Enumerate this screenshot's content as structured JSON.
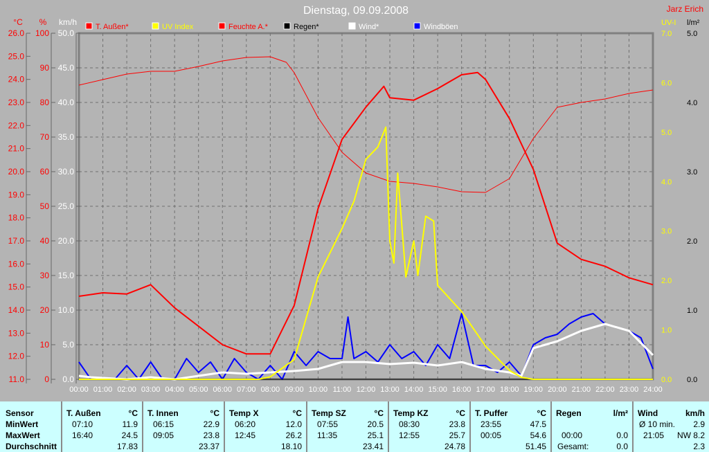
{
  "title": "Dienstag, 09.09.2008",
  "author": "Jarz Erich",
  "colors": {
    "t_aussen": "#ff0000",
    "uv": "#ffff00",
    "feuchte": "#ff0000",
    "regen": "#000000",
    "wind": "#ffffff",
    "windboeen": "#0000ff",
    "background": "#b4b4b4",
    "table": "#ccffff"
  },
  "chart_data": {
    "type": "line",
    "title": "Dienstag, 09.09.2008",
    "grid": true,
    "legend_placement": "top",
    "axes": {
      "left": [
        {
          "unit": "°C",
          "range": [
            11,
            26
          ],
          "ticks": [
            "26.0",
            "25.0",
            "24.0",
            "23.0",
            "22.0",
            "21.0",
            "20.0",
            "19.0",
            "18.0",
            "17.0",
            "16.0",
            "15.0",
            "14.0",
            "13.0",
            "12.0",
            "11.0"
          ]
        },
        {
          "unit": "%",
          "range": [
            0,
            100
          ],
          "ticks": [
            "100",
            "90",
            "80",
            "70",
            "60",
            "50",
            "40",
            "30",
            "20",
            "10",
            "0"
          ]
        },
        {
          "unit": "km/h",
          "range": [
            0,
            50
          ],
          "ticks": [
            "50.0",
            "45.0",
            "40.0",
            "35.0",
            "30.0",
            "25.0",
            "20.0",
            "15.0",
            "10.0",
            "5.0",
            "0.0"
          ]
        }
      ],
      "right": [
        {
          "unit": "UV-I",
          "range": [
            0,
            7
          ],
          "ticks": [
            "7.0",
            "6.0",
            "5.0",
            "4.0",
            "3.0",
            "2.0",
            "1.0",
            "0.0"
          ]
        },
        {
          "unit": "l/m²",
          "range": [
            0,
            5
          ],
          "ticks": [
            "5.0",
            "4.0",
            "3.0",
            "2.0",
            "1.0",
            "0.0"
          ]
        }
      ],
      "x_ticks": [
        "00:00",
        "01:00",
        "02:00",
        "03:00",
        "04:00",
        "05:00",
        "06:00",
        "07:00",
        "08:00",
        "09:00",
        "10:00",
        "11:00",
        "12:00",
        "13:00",
        "14:00",
        "15:00",
        "16:00",
        "17:00",
        "18:00",
        "19:00",
        "20:00",
        "21:00",
        "22:00",
        "23:00",
        "24:00"
      ]
    },
    "series": [
      {
        "name": "T. Außen*",
        "axis": "°C",
        "width": 2,
        "x": [
          0,
          1,
          2,
          3,
          4,
          5,
          6,
          7,
          8,
          9,
          10,
          11,
          12,
          12.75,
          13,
          14,
          15,
          16,
          16.67,
          17,
          18,
          19,
          20,
          21,
          22,
          23,
          24
        ],
        "y": [
          14.6,
          14.75,
          14.7,
          15.1,
          14.1,
          13.3,
          12.5,
          12.1,
          12.1,
          14.2,
          18.4,
          21.4,
          22.8,
          23.7,
          23.2,
          23.1,
          23.6,
          24.2,
          24.3,
          24.0,
          22.3,
          20.1,
          16.9,
          16.2,
          15.9,
          15.4,
          15.1
        ]
      },
      {
        "name": "UV Index",
        "axis": "UV-I",
        "width": 2,
        "x": [
          0,
          7.5,
          8,
          9,
          10,
          11,
          11.5,
          12,
          12.5,
          12.83,
          13,
          13.17,
          13.33,
          13.67,
          14,
          14.17,
          14.5,
          14.83,
          15,
          16,
          17,
          18,
          18.5,
          19,
          24
        ],
        "y": [
          0,
          0,
          0.05,
          0.4,
          2.07,
          3.05,
          3.6,
          4.45,
          4.7,
          5.1,
          2.8,
          2.35,
          4.17,
          2.07,
          2.8,
          2.1,
          3.3,
          3.2,
          1.9,
          1.37,
          0.67,
          0.18,
          0.04,
          0,
          0
        ]
      },
      {
        "name": "Feuchte A.*",
        "axis": "%",
        "width": 1,
        "x": [
          0,
          1,
          2,
          3,
          4,
          5,
          6,
          7,
          8,
          8.67,
          9,
          10,
          11,
          12,
          13,
          14,
          15,
          16,
          17,
          18,
          19,
          20,
          21,
          22,
          23,
          24
        ],
        "y": [
          85,
          86.6,
          88.2,
          89,
          89,
          90.4,
          92,
          93,
          93.2,
          91.6,
          88.6,
          75.6,
          65.6,
          59.6,
          57.2,
          56.6,
          55.6,
          54.2,
          54,
          58,
          69.6,
          78.6,
          80,
          81,
          82.6,
          83.6
        ]
      },
      {
        "name": "Regen*",
        "axis": "l/m²",
        "width": 1,
        "x": [
          0,
          24
        ],
        "y": [
          0,
          0
        ]
      },
      {
        "name": "Wind*",
        "axis": "km/h",
        "width": 3,
        "x": [
          0,
          0.5,
          2,
          3,
          4,
          5,
          6,
          7,
          8,
          9,
          10,
          11,
          12,
          13,
          14,
          15,
          16,
          17,
          18,
          18.5,
          19,
          20,
          21,
          22,
          23,
          24
        ],
        "y": [
          0.5,
          0.3,
          0,
          0.3,
          0,
          0.5,
          1,
          0.8,
          1,
          1.2,
          1.5,
          2.5,
          2.5,
          2.2,
          2.4,
          2,
          2.5,
          1.5,
          1,
          0.5,
          4.5,
          5.5,
          7,
          8,
          7,
          3.5
        ]
      },
      {
        "name": "Windböen",
        "axis": "km/h",
        "width": 2,
        "x": [
          0,
          0.5,
          1,
          1.5,
          2,
          2.5,
          3,
          3.5,
          4,
          4.5,
          5,
          5.5,
          6,
          6.5,
          7,
          7.5,
          8,
          8.5,
          9,
          9.5,
          10,
          10.5,
          11,
          11.25,
          11.5,
          12,
          12.5,
          13,
          13.5,
          14,
          14.5,
          15,
          15.5,
          16,
          16.5,
          17,
          17.5,
          18,
          18.5,
          19,
          19.5,
          20,
          20.5,
          21,
          21.5,
          22,
          22.5,
          23,
          23.5,
          24
        ],
        "y": [
          2.5,
          0,
          0,
          0,
          2,
          0,
          2.5,
          0,
          0,
          3,
          1,
          2.5,
          0,
          3,
          1,
          0,
          2,
          0,
          4,
          2,
          4,
          3,
          3,
          9,
          3,
          4,
          2.5,
          5,
          3,
          4,
          2,
          5,
          3,
          9.5,
          2,
          2,
          1,
          2.5,
          0.5,
          5,
          6,
          6.5,
          8,
          9,
          9.5,
          8,
          7.5,
          7,
          6,
          1.5
        ]
      }
    ]
  },
  "table": {
    "row_labels": [
      "Sensor",
      "MinWert",
      "MaxWert",
      "Durchschnitt"
    ],
    "columns": [
      {
        "name": "T. Außen",
        "unit": "°C",
        "min_time": "07:10",
        "min": "11.9",
        "max_time": "16:40",
        "max": "24.5",
        "avg": "17.83"
      },
      {
        "name": "T. Innen",
        "unit": "°C",
        "min_time": "06:15",
        "min": "22.9",
        "max_time": "09:05",
        "max": "23.8",
        "avg": "23.37"
      },
      {
        "name": "Temp X",
        "unit": "°C",
        "min_time": "06:20",
        "min": "12.0",
        "max_time": "12:45",
        "max": "26.2",
        "avg": "18.10"
      },
      {
        "name": "Temp SZ",
        "unit": "°C",
        "min_time": "07:55",
        "min": "20.5",
        "max_time": "11:35",
        "max": "25.1",
        "avg": "23.41"
      },
      {
        "name": "Temp KZ",
        "unit": "°C",
        "min_time": "08:30",
        "min": "23.8",
        "max_time": "12:55",
        "max": "25.7",
        "avg": "24.78"
      },
      {
        "name": "T. Puffer",
        "unit": "°C",
        "min_time": "23:55",
        "min": "47.5",
        "max_time": "00:05",
        "max": "54.6",
        "avg": "51.45"
      },
      {
        "name": "Regen",
        "unit": "l/m²",
        "min_time": "",
        "min": "",
        "max_time": "00:00",
        "max": "0.0",
        "avg_label": "Gesamt:",
        "avg": "0.0"
      },
      {
        "name": "Wind",
        "unit": "km/h",
        "min_time": "Ø 10 min.",
        "min": "2.9",
        "max_time": "21:05",
        "max": "NW 8.2",
        "avg": "2.3"
      }
    ]
  }
}
